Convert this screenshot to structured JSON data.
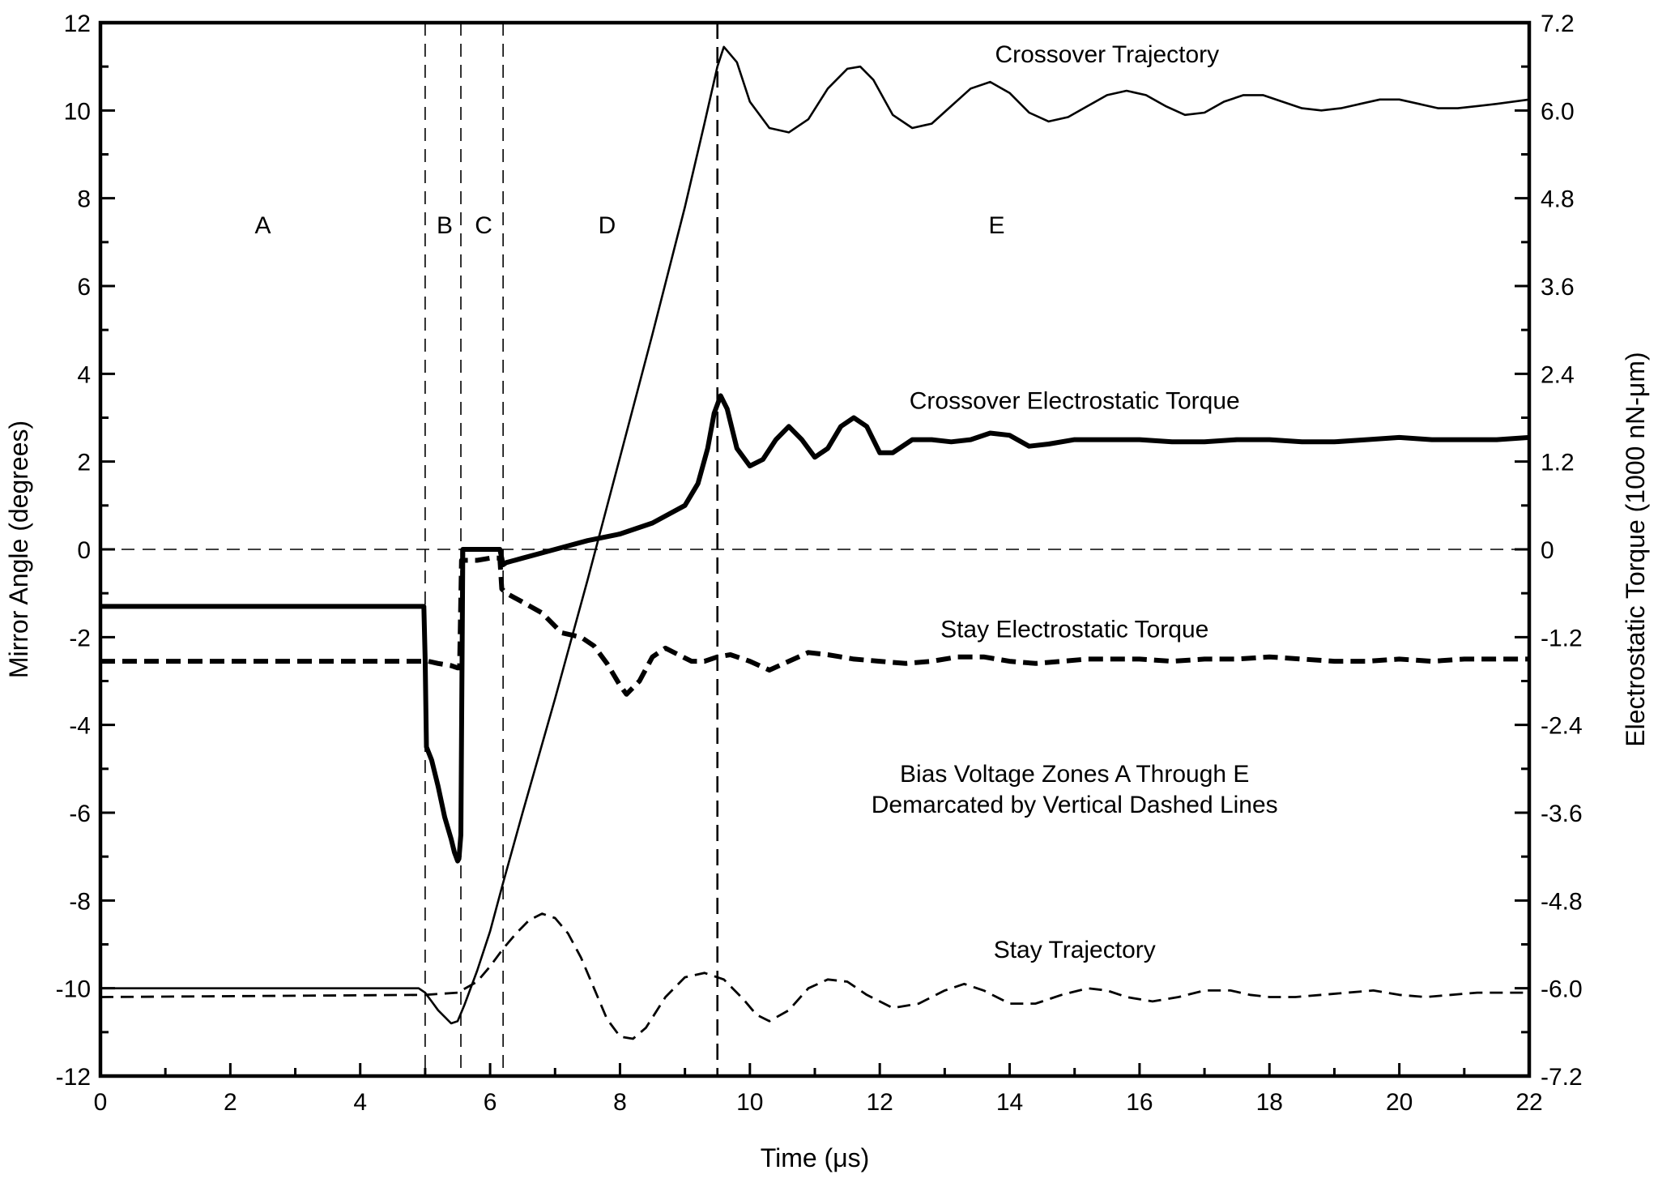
{
  "chart_data": {
    "type": "line",
    "xlabel": "Time (μs)",
    "ylabel_left": "Mirror Angle (degrees)",
    "ylabel_right": "Electrostatic Torque (1000 nN-μm)",
    "xlim": [
      0,
      22
    ],
    "ylim_left": [
      -12,
      12
    ],
    "ylim_right": [
      -7.2,
      7.2
    ],
    "x_ticks": [
      "0",
      "2",
      "4",
      "6",
      "8",
      "10",
      "12",
      "14",
      "16",
      "18",
      "20",
      "22"
    ],
    "y_left_ticks": [
      "12",
      "10",
      "8",
      "6",
      "4",
      "2",
      "0",
      "-2",
      "-4",
      "-6",
      "-8",
      "-10",
      "-12"
    ],
    "y_right_ticks": [
      "7.2",
      "6.0",
      "4.8",
      "3.6",
      "2.4",
      "1.2",
      "0",
      "-1.2",
      "-2.4",
      "-3.6",
      "-4.8",
      "-6.0",
      "-7.2"
    ],
    "grid": false,
    "zone_boundaries": [
      5.0,
      5.55,
      6.2,
      9.5
    ],
    "zones": [
      {
        "label": "A",
        "x": 2.5
      },
      {
        "label": "B",
        "x": 5.3
      },
      {
        "label": "C",
        "x": 5.9
      },
      {
        "label": "D",
        "x": 7.8
      },
      {
        "label": "E",
        "x": 13.8
      }
    ],
    "annotations": [
      {
        "text": "Crossover Trajectory",
        "x": 15.5,
        "y": 11.1
      },
      {
        "text": "Crossover Electrostatic Torque",
        "x": 15.0,
        "y": 3.2
      },
      {
        "text": "Stay Electrostatic Torque",
        "x": 15.0,
        "y": -2.0
      },
      {
        "text": "Bias Voltage Zones A Through E",
        "x": 15.0,
        "y": -5.3
      },
      {
        "text": "Demarcated by Vertical Dashed Lines",
        "x": 15.0,
        "y": -6.0
      },
      {
        "text": "Stay Trajectory",
        "x": 15.0,
        "y": -9.3
      }
    ],
    "series": [
      {
        "name": "Crossover Trajectory",
        "axis": "left",
        "style": "solid-thin",
        "x": [
          0,
          4.9,
          5.0,
          5.1,
          5.2,
          5.3,
          5.4,
          5.5,
          5.6,
          5.8,
          6.0,
          6.2,
          6.5,
          7.0,
          7.5,
          8.0,
          8.5,
          9.0,
          9.3,
          9.5,
          9.6,
          9.8,
          10.0,
          10.3,
          10.6,
          10.9,
          11.2,
          11.5,
          11.7,
          11.9,
          12.2,
          12.5,
          12.8,
          13.1,
          13.4,
          13.7,
          14.0,
          14.3,
          14.6,
          14.9,
          15.2,
          15.5,
          15.8,
          16.1,
          16.4,
          16.7,
          17.0,
          17.3,
          17.6,
          17.9,
          18.2,
          18.5,
          18.8,
          19.1,
          19.4,
          19.7,
          20.0,
          20.3,
          20.6,
          20.9,
          21.2,
          21.5,
          22.0
        ],
        "y": [
          -10.0,
          -10.0,
          -10.1,
          -10.3,
          -10.5,
          -10.65,
          -10.8,
          -10.75,
          -10.4,
          -9.6,
          -8.7,
          -7.6,
          -6.0,
          -3.4,
          -0.7,
          2.1,
          4.9,
          7.8,
          9.7,
          11.0,
          11.45,
          11.1,
          10.2,
          9.6,
          9.5,
          9.8,
          10.5,
          10.95,
          11.0,
          10.7,
          9.9,
          9.6,
          9.7,
          10.1,
          10.5,
          10.65,
          10.4,
          9.95,
          9.75,
          9.85,
          10.1,
          10.35,
          10.45,
          10.35,
          10.1,
          9.9,
          9.95,
          10.2,
          10.35,
          10.35,
          10.2,
          10.05,
          10.0,
          10.05,
          10.15,
          10.25,
          10.25,
          10.15,
          10.05,
          10.05,
          10.1,
          10.15,
          10.25
        ]
      },
      {
        "name": "Crossover Electrostatic Torque",
        "axis": "left",
        "style": "solid-thick",
        "x": [
          0,
          4.98,
          5.0,
          5.02,
          5.1,
          5.2,
          5.3,
          5.4,
          5.45,
          5.5,
          5.52,
          5.55,
          5.58,
          6.15,
          6.18,
          6.2,
          6.25,
          6.5,
          7.0,
          7.5,
          8.0,
          8.5,
          9.0,
          9.2,
          9.35,
          9.45,
          9.55,
          9.65,
          9.8,
          10.0,
          10.2,
          10.4,
          10.6,
          10.8,
          11.0,
          11.2,
          11.4,
          11.6,
          11.8,
          12.0,
          12.2,
          12.5,
          12.8,
          13.1,
          13.4,
          13.7,
          14.0,
          14.3,
          14.6,
          15.0,
          15.5,
          16.0,
          16.5,
          17.0,
          17.5,
          18.0,
          18.5,
          19.0,
          19.5,
          20.0,
          20.5,
          21.0,
          21.5,
          22.0
        ],
        "y": [
          -1.3,
          -1.3,
          -2.5,
          -4.5,
          -4.8,
          -5.4,
          -6.1,
          -6.6,
          -6.9,
          -7.1,
          -7.05,
          -6.5,
          0.0,
          0.0,
          -0.2,
          -0.35,
          -0.3,
          -0.2,
          0.0,
          0.2,
          0.35,
          0.6,
          1.0,
          1.5,
          2.3,
          3.1,
          3.5,
          3.2,
          2.3,
          1.9,
          2.05,
          2.5,
          2.8,
          2.5,
          2.1,
          2.3,
          2.8,
          3.0,
          2.8,
          2.2,
          2.2,
          2.5,
          2.5,
          2.45,
          2.5,
          2.65,
          2.6,
          2.35,
          2.4,
          2.5,
          2.5,
          2.5,
          2.45,
          2.45,
          2.5,
          2.5,
          2.45,
          2.45,
          2.5,
          2.55,
          2.5,
          2.5,
          2.5,
          2.55
        ]
      },
      {
        "name": "Stay Electrostatic Torque",
        "axis": "left",
        "style": "dashed-thick",
        "x": [
          0,
          4.98,
          5.05,
          5.2,
          5.4,
          5.5,
          5.53,
          5.56,
          5.8,
          6.0,
          6.15,
          6.18,
          6.25,
          6.5,
          6.8,
          7.1,
          7.4,
          7.6,
          7.8,
          8.0,
          8.1,
          8.3,
          8.5,
          8.7,
          8.9,
          9.1,
          9.3,
          9.5,
          9.7,
          10.0,
          10.3,
          10.6,
          10.9,
          11.2,
          11.6,
          12.0,
          12.4,
          12.8,
          13.2,
          13.6,
          14.0,
          14.4,
          14.8,
          15.2,
          15.6,
          16.0,
          16.5,
          17.0,
          17.5,
          18.0,
          18.5,
          19.0,
          19.5,
          20.0,
          20.5,
          21.0,
          21.5,
          22.0
        ],
        "y": [
          -2.55,
          -2.55,
          -2.55,
          -2.6,
          -2.65,
          -2.7,
          -2.7,
          -0.25,
          -0.25,
          -0.2,
          -0.2,
          -0.9,
          -1.0,
          -1.2,
          -1.45,
          -1.9,
          -2.0,
          -2.2,
          -2.6,
          -3.1,
          -3.3,
          -3.0,
          -2.45,
          -2.25,
          -2.4,
          -2.55,
          -2.55,
          -2.45,
          -2.4,
          -2.55,
          -2.75,
          -2.55,
          -2.35,
          -2.4,
          -2.5,
          -2.55,
          -2.6,
          -2.55,
          -2.45,
          -2.45,
          -2.55,
          -2.6,
          -2.55,
          -2.5,
          -2.5,
          -2.5,
          -2.55,
          -2.5,
          -2.5,
          -2.45,
          -2.5,
          -2.55,
          -2.55,
          -2.5,
          -2.55,
          -2.5,
          -2.5,
          -2.5
        ]
      },
      {
        "name": "Stay Trajectory",
        "axis": "left",
        "style": "dashed-thin",
        "x": [
          0,
          5.0,
          5.5,
          5.8,
          6.0,
          6.2,
          6.4,
          6.6,
          6.8,
          7.0,
          7.2,
          7.4,
          7.6,
          7.8,
          8.0,
          8.2,
          8.4,
          8.7,
          9.0,
          9.3,
          9.6,
          9.9,
          10.1,
          10.3,
          10.6,
          10.9,
          11.2,
          11.5,
          11.8,
          12.2,
          12.6,
          13.0,
          13.3,
          13.6,
          14.0,
          14.4,
          14.8,
          15.2,
          15.5,
          15.8,
          16.2,
          16.6,
          17.0,
          17.4,
          17.7,
          18.0,
          18.4,
          18.8,
          19.2,
          19.6,
          20.0,
          20.4,
          20.8,
          21.2,
          21.6,
          22.0
        ],
        "y": [
          -10.2,
          -10.15,
          -10.1,
          -9.85,
          -9.5,
          -9.1,
          -8.75,
          -8.45,
          -8.3,
          -8.4,
          -8.75,
          -9.3,
          -10.0,
          -10.7,
          -11.1,
          -11.15,
          -10.9,
          -10.2,
          -9.75,
          -9.65,
          -9.8,
          -10.25,
          -10.6,
          -10.75,
          -10.5,
          -10.0,
          -9.8,
          -9.85,
          -10.15,
          -10.45,
          -10.35,
          -10.05,
          -9.9,
          -10.05,
          -10.35,
          -10.35,
          -10.15,
          -10.0,
          -10.05,
          -10.2,
          -10.3,
          -10.2,
          -10.05,
          -10.05,
          -10.15,
          -10.2,
          -10.2,
          -10.15,
          -10.1,
          -10.05,
          -10.15,
          -10.2,
          -10.15,
          -10.1,
          -10.1,
          -10.1
        ]
      }
    ]
  }
}
